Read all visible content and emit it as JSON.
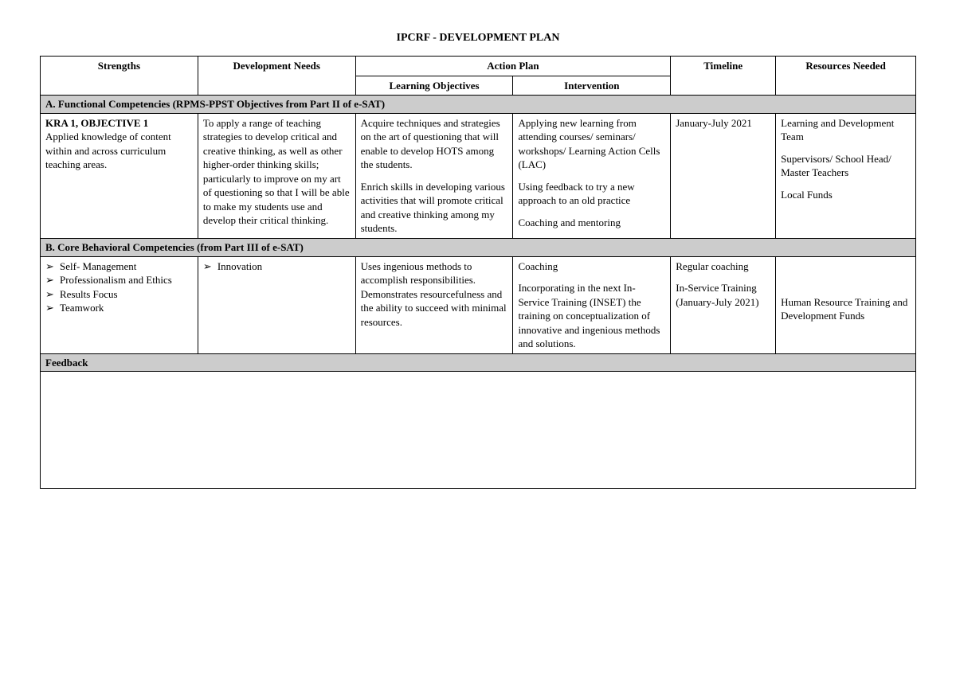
{
  "title": "IPCRF - DEVELOPMENT PLAN",
  "headers": {
    "strengths": "Strengths",
    "devNeeds": "Development Needs",
    "actionPlan": "Action Plan",
    "learningObjectives": "Learning Objectives",
    "intervention": "Intervention",
    "timeline": "Timeline",
    "resources": "Resources Needed"
  },
  "sectionA": {
    "label": "A. Functional Competencies (RPMS-PPST Objectives from Part II of e-SAT)",
    "row": {
      "strengthsBold": "KRA 1, OBJECTIVE 1",
      "strengthsText": "Applied knowledge of content within and across curriculum teaching areas.",
      "devNeeds": "To apply a range of teaching strategies to develop critical and creative thinking, as well as other higher-order thinking skills; particularly to improve on my art of questioning so that I will be able to make my students use and develop their critical thinking.",
      "learning1": "Acquire techniques and strategies on the art of questioning that will enable to develop HOTS among the students.",
      "learning2": "Enrich skills in developing various activities that will promote critical and creative thinking among my students.",
      "intervention1": "Applying new learning from attending courses/ seminars/ workshops/ Learning Action Cells (LAC)",
      "intervention2": "Using feedback to try a new approach to an old practice",
      "intervention3": "Coaching and mentoring",
      "timeline": "January-July 2021",
      "resources1": "Learning and Development Team",
      "resources2": "Supervisors/ School Head/ Master Teachers",
      "resources3": "Local Funds"
    }
  },
  "sectionB": {
    "label": "B. Core Behavioral Competencies (from Part III of e-SAT)",
    "row": {
      "strengths": [
        "Self- Management",
        "Professionalism and Ethics",
        "Results Focus",
        "Teamwork"
      ],
      "devNeeds": [
        "Innovation"
      ],
      "learning": "Uses ingenious methods to accomplish responsibilities. Demonstrates resourcefulness and the ability to succeed with minimal resources.",
      "intervention1": "Coaching",
      "intervention2": "Incorporating in the next In-Service Training (INSET) the training on conceptualization of innovative and ingenious methods and solutions.",
      "timeline1": "Regular coaching",
      "timeline2": "In-Service Training (January-July 2021)",
      "resources": "Human Resource Training and Development Funds"
    }
  },
  "feedback": {
    "label": "Feedback"
  }
}
